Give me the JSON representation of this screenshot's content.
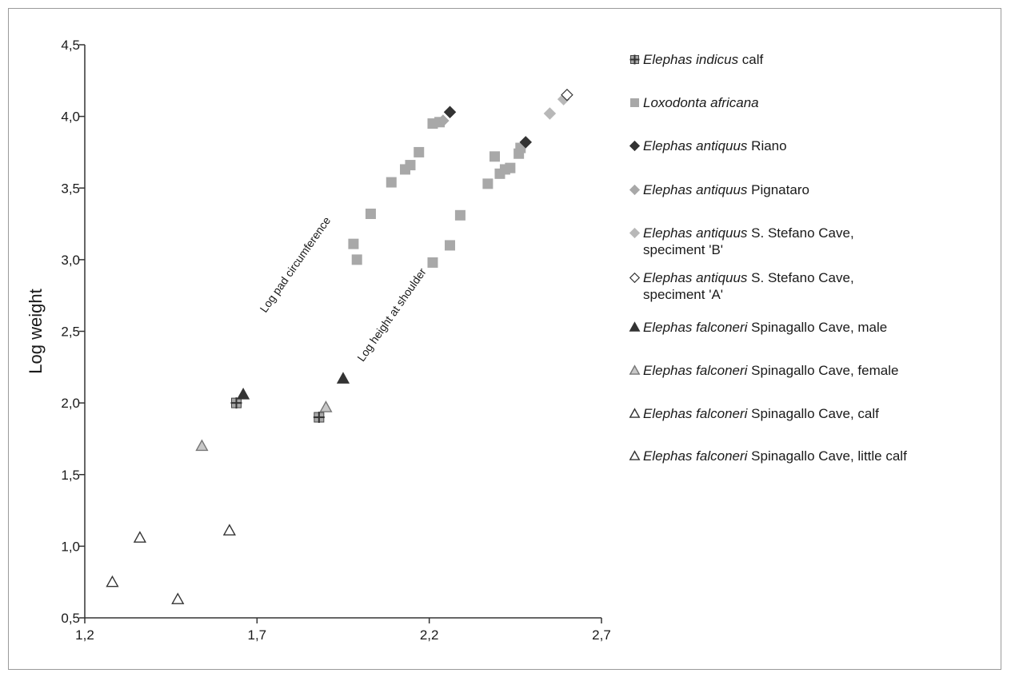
{
  "chart_data": {
    "type": "scatter",
    "title": "",
    "xlabel": "",
    "ylabel": "Log weight",
    "xlim": [
      1.2,
      2.7
    ],
    "ylim": [
      0.5,
      4.5
    ],
    "x_ticks": [
      1.2,
      1.7,
      2.2,
      2.7
    ],
    "x_tick_labels": [
      "1,2",
      "1,7",
      "2,2",
      "2,7"
    ],
    "y_ticks": [
      0.5,
      1.0,
      1.5,
      2.0,
      2.5,
      3.0,
      3.5,
      4.0,
      4.5
    ],
    "y_tick_labels": [
      "0,5",
      "1,0",
      "1,5",
      "2,0",
      "2,5",
      "3,0",
      "3,5",
      "4,0",
      "4,5"
    ],
    "grid": false,
    "legend_position": "right",
    "annotations": [
      {
        "text": "Log pad circumference",
        "x": 1.82,
        "y": 2.95
      },
      {
        "text": "Log height at shoulder",
        "x": 2.1,
        "y": 2.6
      }
    ],
    "series": [
      {
        "species": "Elephas indicus",
        "rest": " calf",
        "marker": "square-cross",
        "fill": "#a8a8a8",
        "stroke": "#444444",
        "points": [
          [
            1.64,
            2.0
          ],
          [
            1.88,
            1.9
          ]
        ]
      },
      {
        "species": "Loxodonta africana",
        "rest": "",
        "marker": "square",
        "fill": "#a8a8a8",
        "stroke": "#a8a8a8",
        "points": [
          [
            1.98,
            3.11
          ],
          [
            1.99,
            3.0
          ],
          [
            2.03,
            3.32
          ],
          [
            2.09,
            3.54
          ],
          [
            2.13,
            3.63
          ],
          [
            2.145,
            3.66
          ],
          [
            2.17,
            3.75
          ],
          [
            2.21,
            3.95
          ],
          [
            2.23,
            3.96
          ],
          [
            2.21,
            2.98
          ],
          [
            2.26,
            3.1
          ],
          [
            2.29,
            3.31
          ],
          [
            2.37,
            3.53
          ],
          [
            2.39,
            3.72
          ],
          [
            2.405,
            3.6
          ],
          [
            2.42,
            3.63
          ],
          [
            2.435,
            3.64
          ],
          [
            2.46,
            3.74
          ],
          [
            2.465,
            3.78
          ]
        ]
      },
      {
        "species": "Elephas antiquus",
        "rest": " Riano",
        "marker": "diamond",
        "fill": "#333333",
        "stroke": "#333333",
        "points": [
          [
            2.26,
            4.03
          ],
          [
            2.48,
            3.82
          ]
        ]
      },
      {
        "species": "Elephas antiquus",
        "rest": " Pignataro",
        "marker": "diamond",
        "fill": "#a8a8a8",
        "stroke": "#a8a8a8",
        "points": [
          [
            2.24,
            3.97
          ]
        ]
      },
      {
        "species": "Elephas antiquus",
        "rest": " S. Stefano Cave,\nspeciment 'B'",
        "marker": "diamond",
        "fill": "#b8b8b8",
        "stroke": "#b8b8b8",
        "points": [
          [
            2.55,
            4.02
          ],
          [
            2.59,
            4.12
          ]
        ]
      },
      {
        "species": "Elephas antiquus",
        "rest": " S. Stefano Cave,\nspeciment 'A'",
        "marker": "diamond",
        "fill": "#ffffff",
        "stroke": "#333333",
        "points": [
          [
            2.6,
            4.15
          ]
        ]
      },
      {
        "species": "Elephas falconeri",
        "rest": " Spinagallo Cave, male",
        "marker": "triangle",
        "fill": "#333333",
        "stroke": "#333333",
        "points": [
          [
            1.66,
            2.06
          ],
          [
            1.95,
            2.17
          ]
        ]
      },
      {
        "species": "Elephas falconeri",
        "rest": " Spinagallo Cave, female",
        "marker": "triangle",
        "fill": "#c8c8c8",
        "stroke": "#777777",
        "points": [
          [
            1.54,
            1.7
          ],
          [
            1.9,
            1.97
          ]
        ]
      },
      {
        "species": "Elephas falconeri",
        "rest": " Spinagallo Cave, calf",
        "marker": "triangle",
        "fill": "#ffffff",
        "stroke": "#333333",
        "points": [
          [
            1.62,
            1.11
          ],
          [
            1.47,
            0.63
          ]
        ]
      },
      {
        "species": "Elephas falconeri",
        "rest": " Spinagallo Cave, little calf",
        "marker": "triangle",
        "fill": "#ffffff",
        "stroke": "#333333",
        "points": [
          [
            1.28,
            0.75
          ],
          [
            1.36,
            1.06
          ]
        ]
      }
    ]
  }
}
